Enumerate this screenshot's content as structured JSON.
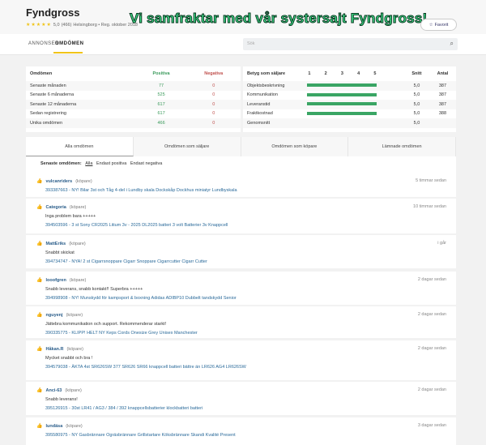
{
  "header": {
    "title": "Fyndgross",
    "rating": "5,0",
    "rating_count": "(466)",
    "location_reg": "Helsingborg • Reg. oktober 2018",
    "banner": "Vi samfraktar med vår systersajt Fyndgross!",
    "favorite": "Favorit",
    "star_color": "#f0c419"
  },
  "nav": {
    "tabs": [
      "ANNONSER",
      "OMDÖMEN"
    ],
    "active": "OMDÖMEN",
    "search_placeholder": "Sök"
  },
  "summary": {
    "headers": [
      "Omdömen",
      "Positiva",
      "Negativa"
    ],
    "rows": [
      {
        "label": "Senaste månaden",
        "pos": "77",
        "neg": "0"
      },
      {
        "label": "Senaste 6 månaderna",
        "pos": "525",
        "neg": "0"
      },
      {
        "label": "Senaste 12 månaderna",
        "pos": "617",
        "neg": "0"
      },
      {
        "label": "Sedan registrering",
        "pos": "617",
        "neg": "0"
      },
      {
        "label": "Unika omdömen",
        "pos": "466",
        "neg": "0"
      }
    ]
  },
  "seller": {
    "headers": [
      "Betyg som säljare",
      "1",
      "2",
      "3",
      "4",
      "5",
      "Snitt",
      "Antal"
    ],
    "rows": [
      {
        "label": "Objektsbeskrivning",
        "score": 5.0,
        "avg": "5,0",
        "count": "387"
      },
      {
        "label": "Kommunikation",
        "score": 5.0,
        "avg": "5,0",
        "count": "387"
      },
      {
        "label": "Leveranstid",
        "score": 5.0,
        "avg": "5,0",
        "count": "387"
      },
      {
        "label": "Fraktkostnad",
        "score": 5.0,
        "avg": "5,0",
        "count": "388"
      }
    ],
    "overall_label": "Genomsnitt",
    "overall": "5,0"
  },
  "tabs": [
    "Alla omdömen",
    "Omdömen som säljare",
    "Omdömen som köpare",
    "Lämnade omdömen"
  ],
  "filter": {
    "label": "Senaste omdömen:",
    "options": [
      "Alla",
      "Endast positiva",
      "Endast negativa"
    ]
  },
  "reviews": [
    {
      "user": "vulcanriders",
      "role": "(köpare)",
      "time": "5 timmar sedan",
      "text": "",
      "item": "393387663 - NY! Bilar 3st och Tåg 4-del i Lundby skala Dockskåp Dockhus miniatyr Lundbyskala"
    },
    {
      "user": "Categoria",
      "role": "(köpare)",
      "time": "10 timmar sedan",
      "text": "Inga problem bara +++++",
      "item": "394503596 - 3 st Sony CR2025 Litium 3v - 2025 DL2025 batteri 3 volt Batterier 3v Knappcell"
    },
    {
      "user": "MattEriks",
      "role": "(köpare)",
      "time": "i går",
      "text": "Snabbt skickat",
      "item": "394734747 - NYA! 2 st Cigarrsnoppare Cigarr Snoppare Cigarrcutter Cigarr Cutter"
    },
    {
      "user": "looofgren",
      "role": "(köpare)",
      "time": "2 dagar sedan",
      "text": "Snabb leverans, snabb kontakt!! Superbra +++++",
      "item": "394998908 - NY! Munskydd för kampsport & boxning Adidas ADIBP10 Dubbelt tandskydd Senior"
    },
    {
      "user": "nguyenj",
      "role": "(köpare)",
      "time": "2 dagar sedan",
      "text": "Jättebra kommunikation och support. Rekommenderar starkt!",
      "item": "390335775 - KLIPP! HELT NY Keps Cords Onesize Grey Unisex Manchester"
    },
    {
      "user": "Håkan.R",
      "role": "(köpare)",
      "time": "2 dagar sedan",
      "text": "Mycket snabbt och bra !",
      "item": "394579038 - ÄKTA 4st SR626SW 377 SR626 SR66 knappcell batteri bättre än LR626 AG4 LR626SW"
    },
    {
      "user": "Anci-63",
      "role": "(köpare)",
      "time": "2 dagar sedan",
      "text": "Snabb leverans!",
      "item": "395126915 - 30st LR41 / AG3 / 384 / 392 knappcellsbatterier klockbatteri batteri"
    },
    {
      "user": "lundäsa",
      "role": "(köpare)",
      "time": "3 dagar sedan",
      "text": "",
      "item": "395580975 - NY Gasbrännare Ogräsbrännare Grillstartare Köksbrännare Skandi Kvalité Present"
    }
  ]
}
